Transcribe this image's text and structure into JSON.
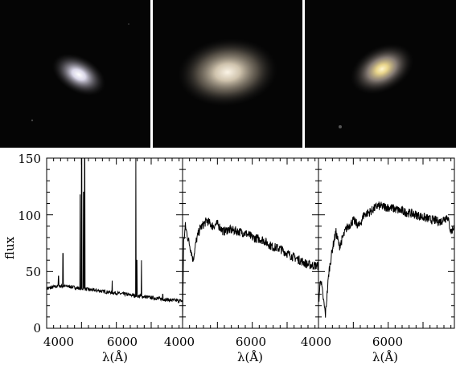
{
  "figure": {
    "ylabel": "flux",
    "xlabel": "λ(Å)",
    "x_tick_labels": [
      "4000",
      "6000"
    ],
    "y_tick_labels": [
      "0",
      "50",
      "100",
      "150"
    ]
  },
  "chart_data": [
    {
      "type": "line",
      "panel": 1,
      "title": "",
      "xlabel": "λ(Å)",
      "ylabel": "flux",
      "xlim": [
        4000,
        7900
      ],
      "ylim": [
        0,
        150
      ],
      "x_ticks": [
        4000,
        6000
      ],
      "y_ticks": [
        0,
        50,
        100,
        150
      ],
      "continuum": [
        [
          4000,
          35
        ],
        [
          4300,
          37
        ],
        [
          4600,
          37
        ],
        [
          5000,
          35
        ],
        [
          5500,
          33
        ],
        [
          6000,
          31
        ],
        [
          6500,
          29
        ],
        [
          7000,
          27
        ],
        [
          7500,
          25
        ],
        [
          7900,
          24
        ]
      ],
      "emission_lines": [
        {
          "x": 4340,
          "peak": 46
        },
        {
          "x": 4470,
          "peak": 66
        },
        {
          "x": 4960,
          "peak": 118
        },
        {
          "x": 5007,
          "peak": 150
        },
        {
          "x": 5060,
          "peak": 120
        },
        {
          "x": 5090,
          "peak": 150
        },
        {
          "x": 5880,
          "peak": 42
        },
        {
          "x": 6560,
          "peak": 150
        },
        {
          "x": 6590,
          "peak": 60
        },
        {
          "x": 6720,
          "peak": 60
        },
        {
          "x": 7330,
          "peak": 30
        }
      ]
    },
    {
      "type": "line",
      "panel": 2,
      "title": "",
      "xlabel": "λ(Å)",
      "ylabel": "",
      "xlim": [
        4000,
        7900
      ],
      "ylim": [
        0,
        150
      ],
      "x_ticks": [
        4000,
        6000
      ],
      "points": [
        [
          4000,
          5
        ],
        [
          4030,
          75
        ],
        [
          4080,
          90
        ],
        [
          4150,
          80
        ],
        [
          4250,
          68
        ],
        [
          4300,
          60
        ],
        [
          4400,
          78
        ],
        [
          4500,
          88
        ],
        [
          4700,
          95
        ],
        [
          4860,
          90
        ],
        [
          5000,
          92
        ],
        [
          5175,
          85
        ],
        [
          5300,
          87
        ],
        [
          5500,
          86
        ],
        [
          5800,
          84
        ],
        [
          6000,
          80
        ],
        [
          6300,
          78
        ],
        [
          6563,
          72
        ],
        [
          6800,
          70
        ],
        [
          7000,
          66
        ],
        [
          7300,
          61
        ],
        [
          7600,
          56
        ],
        [
          7900,
          55
        ]
      ]
    },
    {
      "type": "line",
      "panel": 3,
      "title": "",
      "xlabel": "λ(Å)",
      "ylabel": "",
      "xlim": [
        4000,
        7900
      ],
      "ylim": [
        0,
        150
      ],
      "x_ticks": [
        4000,
        6000
      ],
      "points": [
        [
          4000,
          20
        ],
        [
          4060,
          45
        ],
        [
          4120,
          30
        ],
        [
          4200,
          12
        ],
        [
          4300,
          50
        ],
        [
          4400,
          70
        ],
        [
          4500,
          85
        ],
        [
          4600,
          72
        ],
        [
          4800,
          88
        ],
        [
          5000,
          95
        ],
        [
          5175,
          90
        ],
        [
          5300,
          100
        ],
        [
          5500,
          103
        ],
        [
          5700,
          108
        ],
        [
          5900,
          107
        ],
        [
          6100,
          106
        ],
        [
          6300,
          104
        ],
        [
          6563,
          102
        ],
        [
          6800,
          100
        ],
        [
          7000,
          98
        ],
        [
          7200,
          96
        ],
        [
          7500,
          94
        ],
        [
          7700,
          99
        ],
        [
          7800,
          85
        ],
        [
          7900,
          90
        ]
      ]
    }
  ],
  "images": [
    {
      "panel": 1,
      "description_icon": "galaxy-image-1"
    },
    {
      "panel": 2,
      "description_icon": "galaxy-image-2"
    },
    {
      "panel": 3,
      "description_icon": "galaxy-image-3"
    }
  ]
}
